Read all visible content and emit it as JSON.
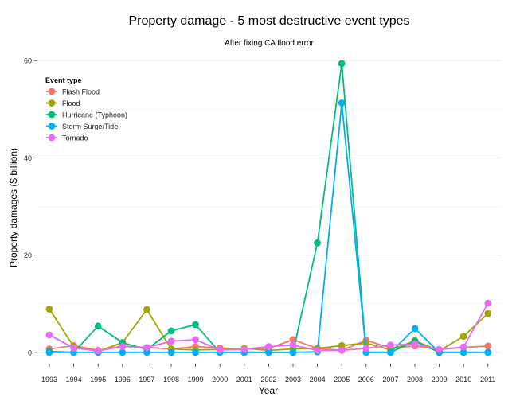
{
  "chart_data": {
    "type": "line",
    "title": "Property damage - 5 most destructive event types",
    "subtitle": "After fixing CA flood error",
    "xlabel": "Year",
    "ylabel": "Property damages ($ billion)",
    "x": [
      "1993",
      "1994",
      "1995",
      "1996",
      "1997",
      "1998",
      "1999",
      "2000",
      "2001",
      "2002",
      "2003",
      "2004",
      "2005",
      "2006",
      "2007",
      "2008",
      "2009",
      "2010",
      "2011"
    ],
    "y_ticks": [
      "0",
      "20",
      "40",
      "60"
    ],
    "ylim": [
      -1.5,
      62
    ],
    "grid": "horizontal",
    "legend_position": "top-left",
    "legend_title": "Event type",
    "series": [
      {
        "name": "Flash Flood",
        "color": "#F8766D",
        "values": [
          0.7,
          1.4,
          0.4,
          1.3,
          1.0,
          0.7,
          1.2,
          0.9,
          0.7,
          0.8,
          2.6,
          0.8,
          0.4,
          2.5,
          0.9,
          1.3,
          0.6,
          1.0,
          1.3
        ]
      },
      {
        "name": "Flood",
        "color": "#A3A500",
        "values": [
          8.9,
          1.2,
          0.2,
          2.0,
          8.8,
          0.7,
          0.5,
          0.6,
          0.8,
          0.4,
          0.7,
          0.8,
          1.4,
          1.9,
          0.5,
          2.4,
          0.3,
          3.3,
          8.0
        ]
      },
      {
        "name": "Hurricane (Typhoon)",
        "color": "#00BF7D",
        "values": [
          0.2,
          0.0,
          5.4,
          2.0,
          0.6,
          4.4,
          5.7,
          0.0,
          0.0,
          0.0,
          0.0,
          22.5,
          59.4,
          0.0,
          0.0,
          2.3,
          0.0,
          0.0,
          0.0
        ]
      },
      {
        "name": "Storm Surge/Tide",
        "color": "#00B0F6",
        "values": [
          0.0,
          0.0,
          0.0,
          0.0,
          0.0,
          0.0,
          0.0,
          0.0,
          0.0,
          0.0,
          0.0,
          0.1,
          51.3,
          0.0,
          0.0,
          4.9,
          0.0,
          0.0,
          0.0
        ]
      },
      {
        "name": "Tornado",
        "color": "#E76BF3",
        "values": [
          3.6,
          0.9,
          0.3,
          1.2,
          1.0,
          2.3,
          2.6,
          0.5,
          0.6,
          1.2,
          1.5,
          0.4,
          0.4,
          0.8,
          1.5,
          1.7,
          0.6,
          1.1,
          10.1
        ]
      }
    ]
  }
}
